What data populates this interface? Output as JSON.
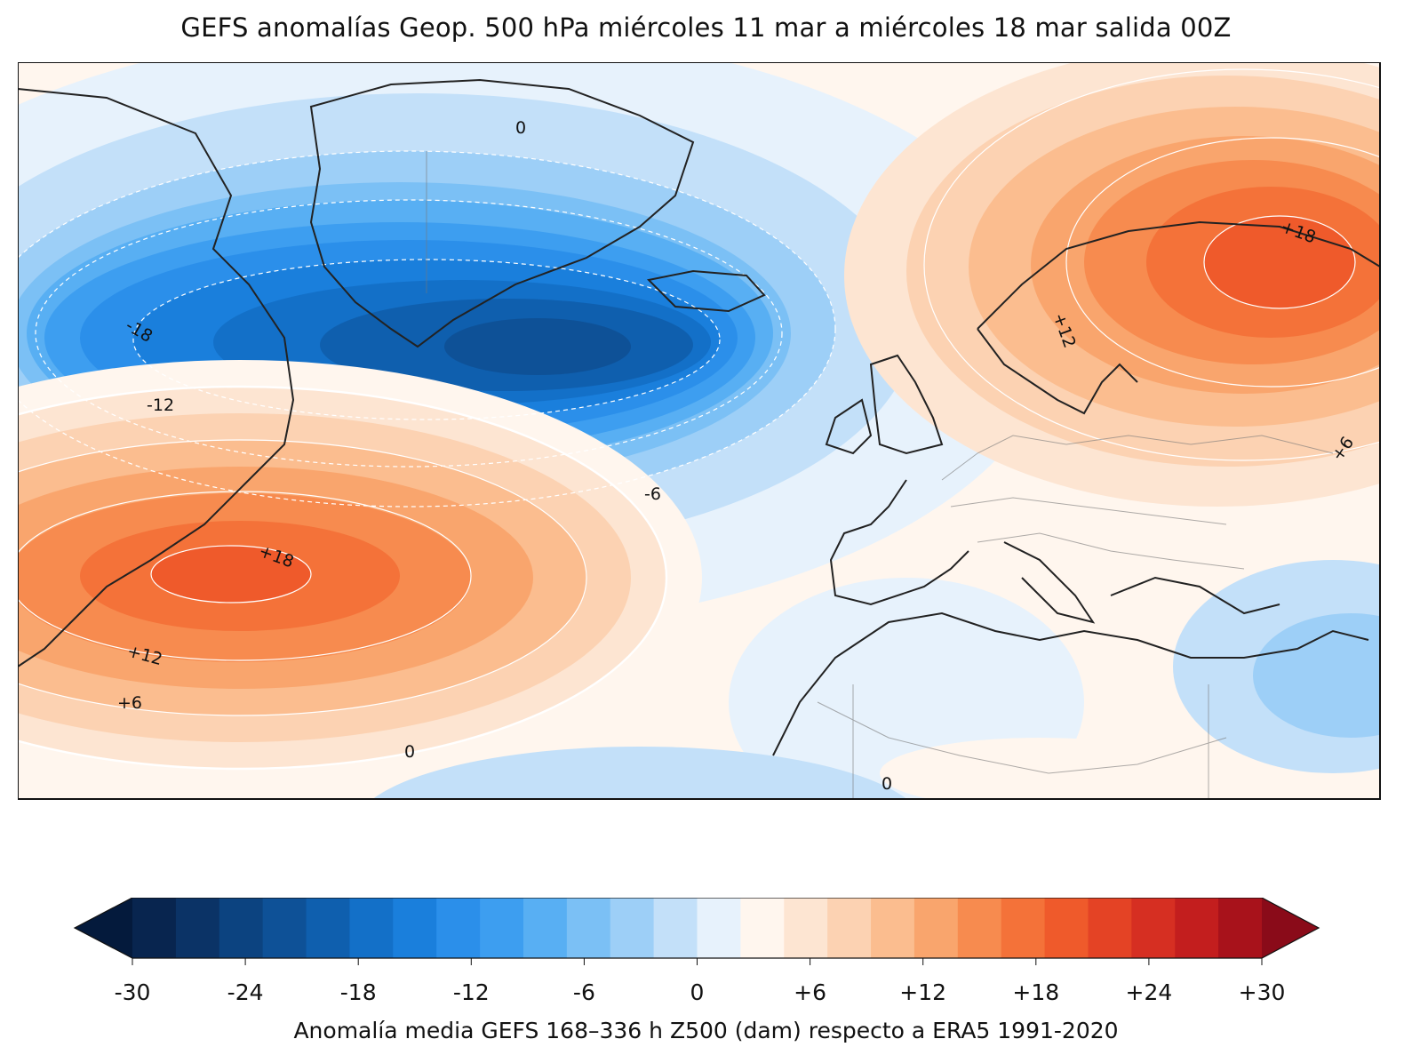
{
  "title": "GEFS anomalías Geop. 500 hPa miércoles 11 mar a miércoles 18 mar salida 00Z",
  "colorbar": {
    "label": "Anomalía media GEFS 168–336 h Z500 (dam) respecto a ERA5 1991-2020",
    "min": -30,
    "max": 30,
    "step": 2,
    "extend": "both",
    "ticks": [
      "-30",
      "-24",
      "-18",
      "-12",
      "-6",
      "0",
      "+6",
      "+12",
      "+18",
      "+24",
      "+30"
    ],
    "colors": [
      "#08254f",
      "#0b3366",
      "#0c4380",
      "#0e5197",
      "#0f5fae",
      "#1370c8",
      "#1a7fdc",
      "#2b8fea",
      "#3d9ef0",
      "#58aff3",
      "#7bc0f5",
      "#9dcff7",
      "#c3e0f9",
      "#e7f2fc",
      "#fff6ee",
      "#fde5d2",
      "#fcd2b2",
      "#fbbd8f",
      "#f9a56d",
      "#f78b4f",
      "#f47239",
      "#ef5a2b",
      "#e44325",
      "#d62f22",
      "#c31e1e",
      "#a8121b"
    ],
    "under_color": "#041a3c",
    "over_color": "#8a0b19"
  },
  "map": {
    "region": "North Atlantic and Europe",
    "contour_labels": [
      "0",
      "-18",
      "-12",
      "-6",
      "+18",
      "+12",
      "+6",
      "0",
      "0",
      "+18",
      "+12",
      "+6"
    ]
  },
  "chart_data": {
    "type": "heatmap",
    "title": "GEFS anomalías Geop. 500 hPa miércoles 11 mar a miércoles 18 mar salida 00Z",
    "variable": "Z500 anomaly (dam)",
    "scale_range": [
      -30,
      30
    ],
    "contour_interval": 6,
    "centers": [
      {
        "type": "negative",
        "location": "south of Greenland / Iceland",
        "value": -22
      },
      {
        "type": "positive",
        "location": "western Atlantic off North America",
        "value": 20
      },
      {
        "type": "positive",
        "location": "Scandinavia / Finland",
        "value": 20
      },
      {
        "type": "negative",
        "location": "eastern Mediterranean",
        "value": -4
      }
    ]
  }
}
